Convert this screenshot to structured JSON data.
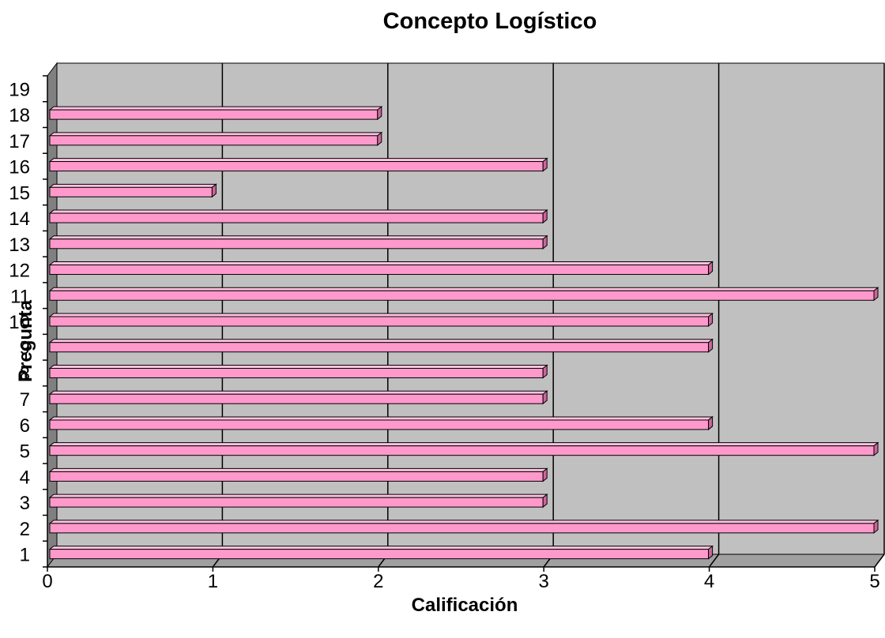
{
  "chart_data": {
    "type": "bar",
    "orientation": "horizontal",
    "title": "Concepto Logístico",
    "xlabel": "Calificación",
    "ylabel": "Pregunta",
    "xlim": [
      0,
      5
    ],
    "x_ticks": [
      "0",
      "1",
      "2",
      "3",
      "4",
      "5"
    ],
    "categories": [
      "1",
      "2",
      "3",
      "4",
      "5",
      "6",
      "7",
      "8",
      "9",
      "10",
      "11",
      "12",
      "13",
      "14",
      "15",
      "16",
      "17",
      "18",
      "19"
    ],
    "values": [
      4,
      5,
      3,
      3,
      5,
      4,
      3,
      3,
      4,
      4,
      5,
      4,
      3,
      3,
      1,
      3,
      2,
      2,
      null
    ],
    "grid": true,
    "legend": "none",
    "colors": {
      "bar_fill": "#ff99cc",
      "bar_stroke": "#000000",
      "plot_background": "#c0c0c0",
      "wall_side": "#808080",
      "floor": "#a0a0a0"
    }
  }
}
